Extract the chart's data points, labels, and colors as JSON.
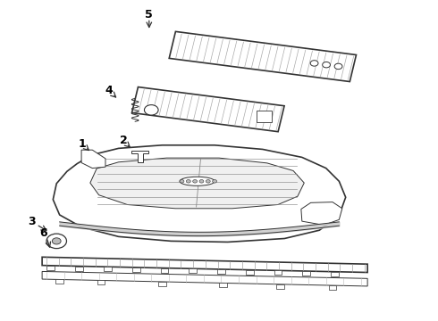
{
  "background_color": "#ffffff",
  "line_color": "#333333",
  "label_color": "#000000",
  "figsize": [
    4.9,
    3.6
  ],
  "dpi": 100
}
